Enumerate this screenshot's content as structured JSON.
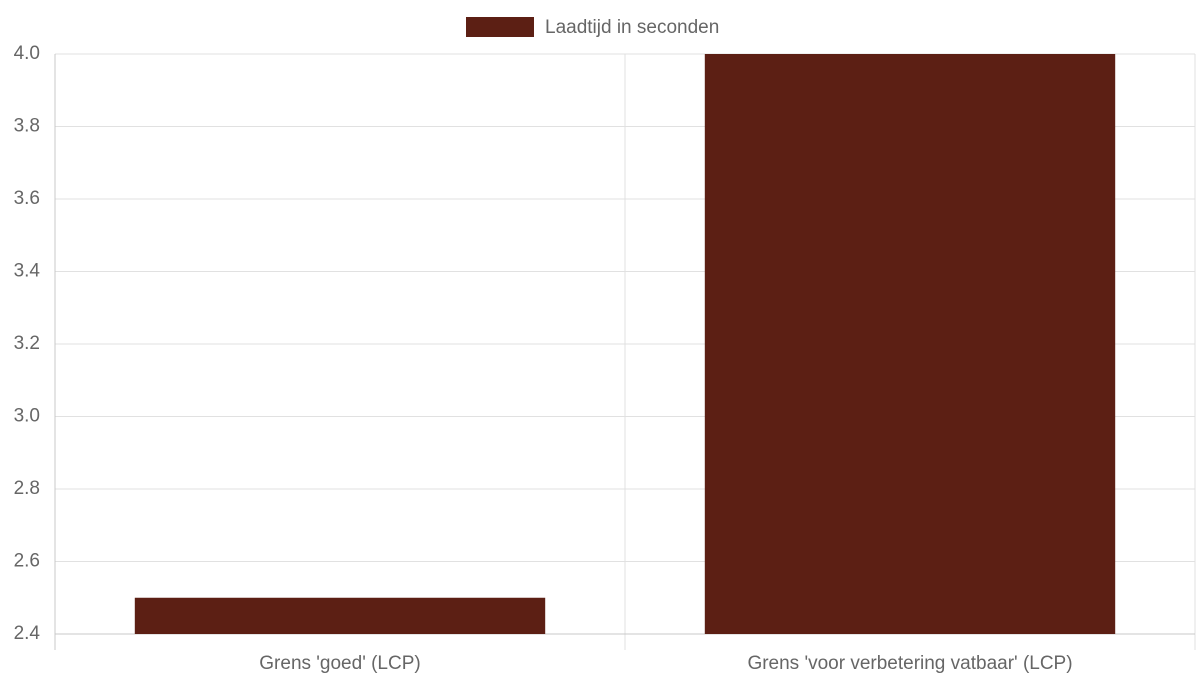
{
  "chart_data": {
    "type": "bar",
    "legend": "Laadtijd in seconden",
    "categories": [
      "Grens 'goed' (LCP)",
      "Grens 'voor verbetering vatbaar' (LCP)"
    ],
    "series": [
      {
        "name": "Laadtijd in seconden",
        "color": "#5c1f14",
        "values": [
          2.5,
          4.0
        ]
      }
    ],
    "ylim": [
      2.4,
      4.0
    ],
    "yticks": [
      2.4,
      2.6,
      2.8,
      {
        "value": 3,
        "label": "3.0"
      },
      3.2,
      3.4,
      3.6,
      3.8,
      {
        "value": 4,
        "label": "4.0"
      }
    ],
    "grid": true,
    "legend_position": "top"
  }
}
